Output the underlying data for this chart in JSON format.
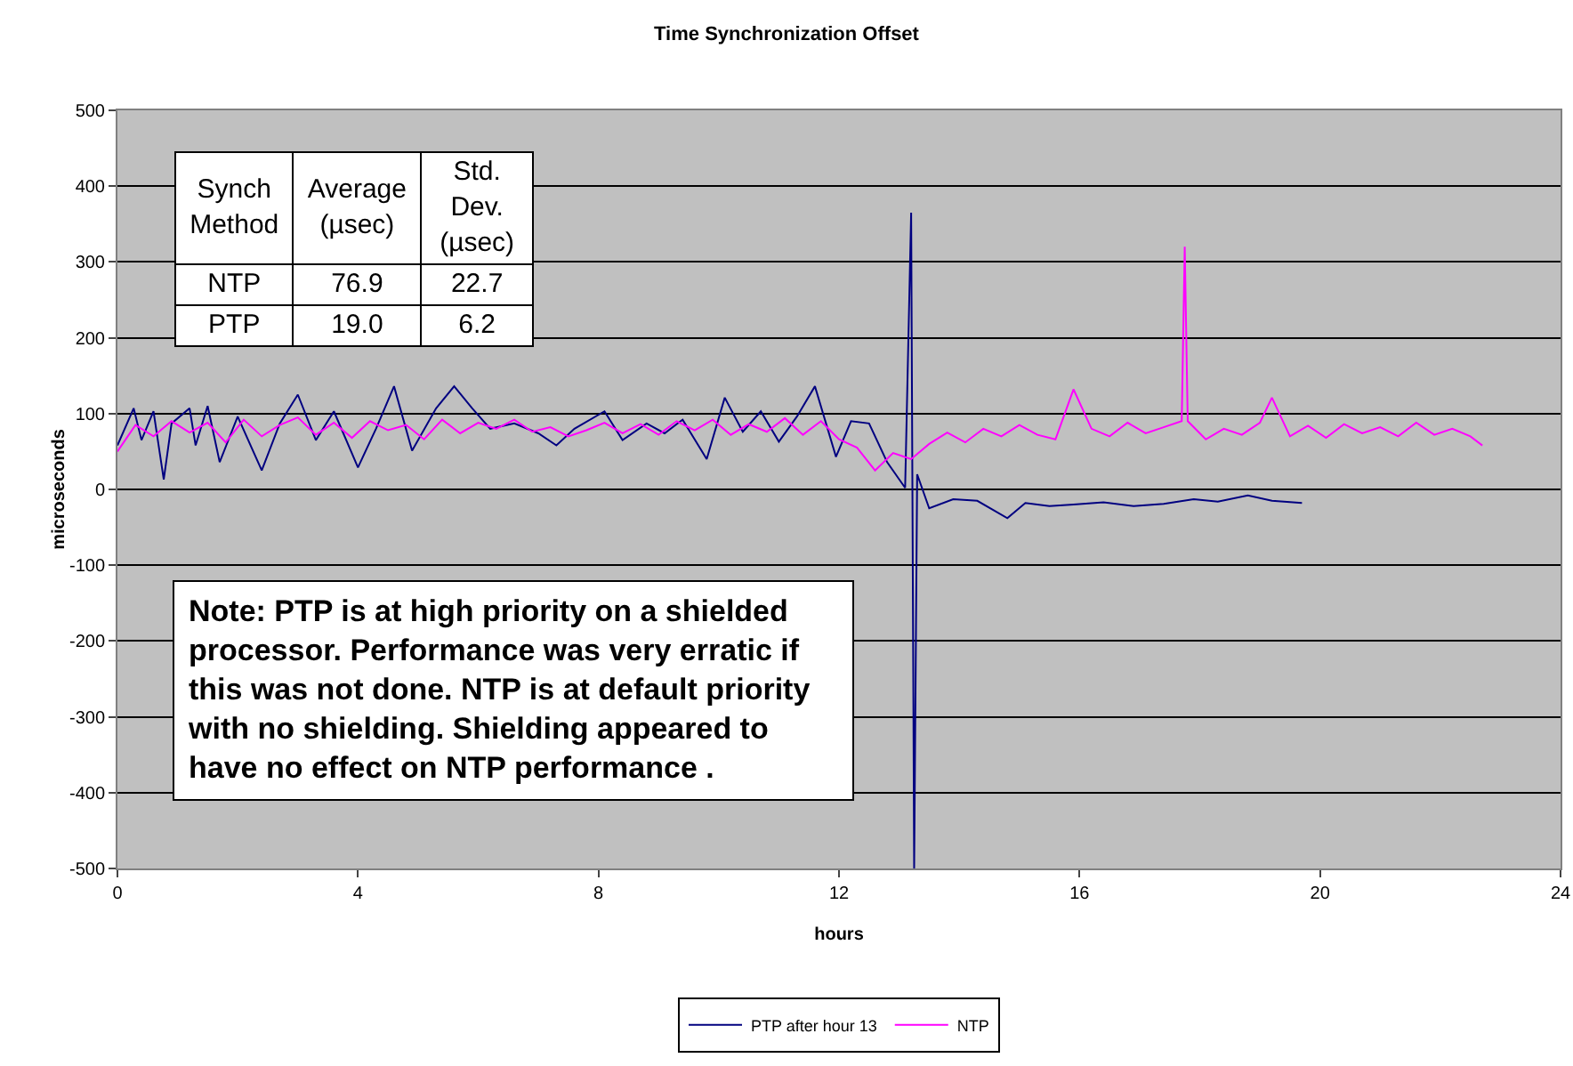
{
  "chart_data": {
    "type": "line",
    "title": "Time Synchronization Offset",
    "xlabel": "hours",
    "ylabel": "microseconds",
    "xlim": [
      0,
      24
    ],
    "xticks": [
      0,
      4,
      8,
      12,
      16,
      20,
      24
    ],
    "ylim": [
      -500,
      500
    ],
    "yticks": [
      -500,
      -400,
      -300,
      -200,
      -100,
      0,
      100,
      200,
      300,
      400,
      500
    ],
    "grid": "y",
    "legend": "bottom",
    "marker": "none",
    "line_style": "solid",
    "series": [
      {
        "name": "PTP after hour 13",
        "color": "#000080",
        "x": [
          0,
          0.27,
          0.4,
          0.6,
          0.77,
          0.9,
          1.2,
          1.3,
          1.5,
          1.7,
          2.0,
          2.4,
          2.7,
          3.0,
          3.3,
          3.6,
          4.0,
          4.3,
          4.6,
          4.9,
          5.3,
          5.6,
          5.9,
          6.2,
          6.6,
          7.0,
          7.3,
          7.6,
          8.1,
          8.4,
          8.8,
          9.1,
          9.4,
          9.8,
          10.1,
          10.4,
          10.7,
          11.0,
          11.3,
          11.6,
          11.95,
          12.2,
          12.5,
          12.8,
          13.1,
          13.2,
          13.25,
          13.3,
          13.5,
          13.9,
          14.3,
          14.8,
          15.1,
          15.5,
          15.9,
          16.4,
          16.9,
          17.4,
          17.9,
          18.3,
          18.8,
          19.2,
          19.7
        ],
        "values": [
          58,
          107,
          65,
          103,
          13,
          87,
          107,
          58,
          110,
          36,
          96,
          25,
          87,
          125,
          65,
          103,
          29,
          80,
          136,
          51,
          107,
          136,
          107,
          80,
          87,
          74,
          58,
          80,
          103,
          65,
          87,
          74,
          92,
          40,
          121,
          76,
          103,
          63,
          96,
          136,
          43,
          90,
          87,
          36,
          2,
          365,
          -500,
          20,
          -25,
          -13,
          -15,
          -38,
          -18,
          -22,
          -20,
          -17,
          -22,
          -19,
          -13,
          -16,
          -8,
          -15,
          -18
        ]
      },
      {
        "name": "NTP",
        "color": "#ff00ff",
        "x": [
          0,
          0.3,
          0.6,
          0.9,
          1.2,
          1.5,
          1.8,
          2.1,
          2.4,
          2.7,
          3.0,
          3.3,
          3.6,
          3.9,
          4.2,
          4.5,
          4.8,
          5.1,
          5.4,
          5.7,
          6.0,
          6.3,
          6.6,
          6.9,
          7.2,
          7.5,
          7.8,
          8.1,
          8.4,
          8.7,
          9.0,
          9.3,
          9.6,
          9.9,
          10.2,
          10.5,
          10.8,
          11.1,
          11.4,
          11.7,
          12.0,
          12.3,
          12.6,
          12.9,
          13.2,
          13.5,
          13.8,
          14.1,
          14.4,
          14.7,
          15.0,
          15.3,
          15.6,
          15.9,
          16.2,
          16.5,
          16.8,
          17.1,
          17.4,
          17.7,
          17.75,
          17.8,
          18.1,
          18.4,
          18.7,
          19.0,
          19.2,
          19.5,
          19.8,
          20.1,
          20.4,
          20.7,
          21.0,
          21.3,
          21.6,
          21.9,
          22.2,
          22.5,
          22.7
        ],
        "values": [
          50,
          85,
          70,
          90,
          75,
          88,
          62,
          92,
          70,
          85,
          95,
          72,
          88,
          68,
          90,
          78,
          85,
          66,
          92,
          74,
          88,
          80,
          92,
          76,
          82,
          70,
          78,
          88,
          74,
          86,
          72,
          90,
          78,
          92,
          72,
          86,
          76,
          94,
          72,
          90,
          66,
          55,
          25,
          48,
          40,
          60,
          75,
          62,
          80,
          70,
          85,
          72,
          66,
          132,
          80,
          70,
          88,
          74,
          82,
          90,
          320,
          90,
          66,
          80,
          72,
          88,
          121,
          70,
          84,
          68,
          86,
          74,
          82,
          70,
          88,
          72,
          80,
          70,
          58
        ]
      }
    ],
    "annotations": [
      "Synch Method",
      "Average (µsec)",
      "Std. Dev. (µsec)",
      "NTP",
      "76.9",
      "22.7",
      "PTP",
      "19.0",
      "6.2",
      "Note:  PTP is at high priority on a shielded processor.  Performance was very erratic if this was not done.  NTP is at default priority with no shielding.   Shielding appeared to have no effect on NTP performance ."
    ]
  }
}
